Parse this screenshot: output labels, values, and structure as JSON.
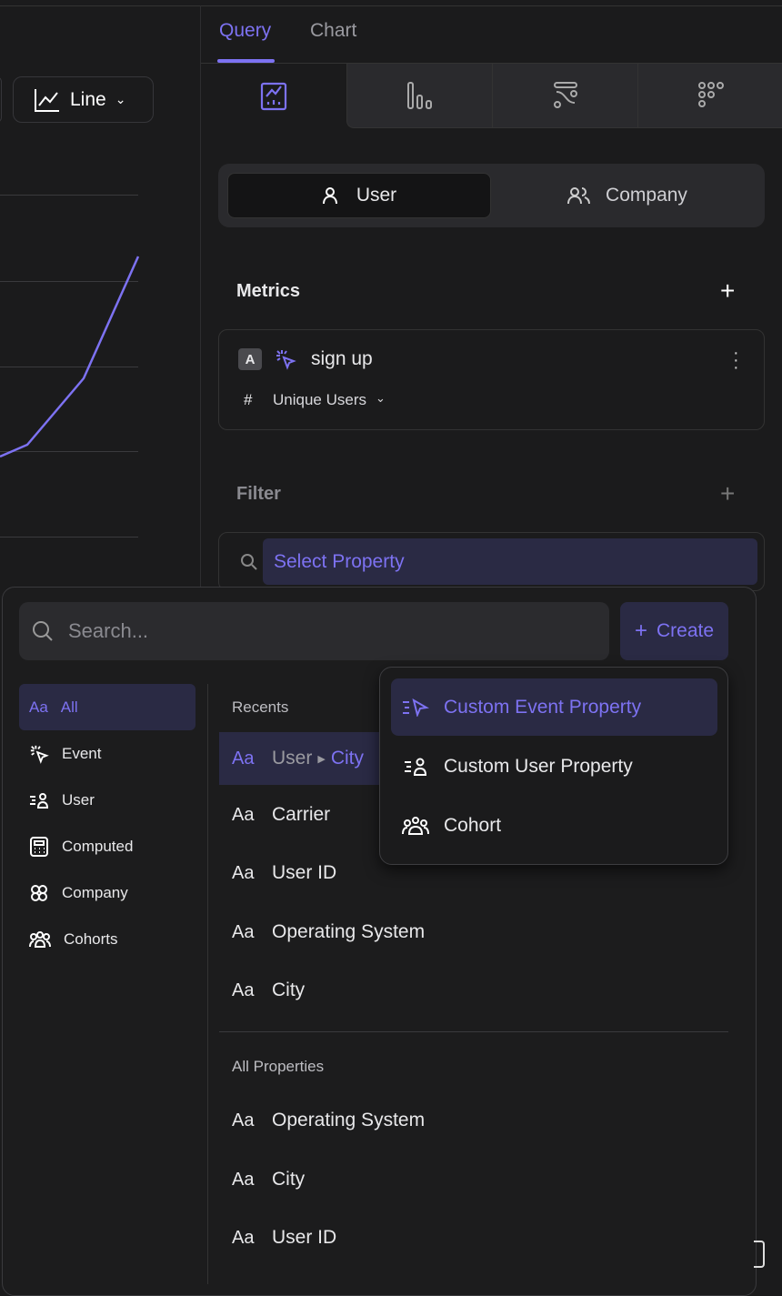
{
  "chart_toolbar": {
    "chart_type_label": "Line"
  },
  "tabs": [
    {
      "label": "Query",
      "active": true
    },
    {
      "label": "Chart",
      "active": false
    }
  ],
  "chart_types": [
    "line-chart-icon",
    "bar-chart-icon",
    "sankey-icon",
    "grid-dots-icon"
  ],
  "entity_toggle": {
    "user": "User",
    "company": "Company",
    "selected": "User"
  },
  "metrics": {
    "title": "Metrics",
    "items": [
      {
        "badge": "A",
        "event": "sign up",
        "aggregation": "Unique Users",
        "aggregation_icon": "#"
      }
    ]
  },
  "filter": {
    "title": "Filter",
    "select_placeholder": "Select Property"
  },
  "popup": {
    "search_placeholder": "Search...",
    "create_label": "Create",
    "categories": [
      {
        "label": "All",
        "icon": "Aa",
        "active": true
      },
      {
        "label": "Event"
      },
      {
        "label": "User"
      },
      {
        "label": "Computed"
      },
      {
        "label": "Company"
      },
      {
        "label": "Cohorts"
      }
    ],
    "recents_title": "Recents",
    "recents": [
      {
        "prefix": "User",
        "name": "City",
        "highlighted": true
      },
      {
        "name": "Carrier"
      },
      {
        "name": "User ID"
      },
      {
        "name": "Operating System"
      },
      {
        "name": "City"
      }
    ],
    "all_title": "All Properties",
    "all": [
      {
        "name": "Operating System"
      },
      {
        "name": "City"
      },
      {
        "name": "User ID"
      }
    ],
    "type_glyph": "Aa"
  },
  "create_menu": [
    {
      "label": "Custom Event Property",
      "active": true
    },
    {
      "label": "Custom User Property"
    },
    {
      "label": "Cohort"
    }
  ],
  "colors": {
    "accent": "#7d72f2",
    "background": "#1b1b1c",
    "panel": "#2a2a2d"
  }
}
